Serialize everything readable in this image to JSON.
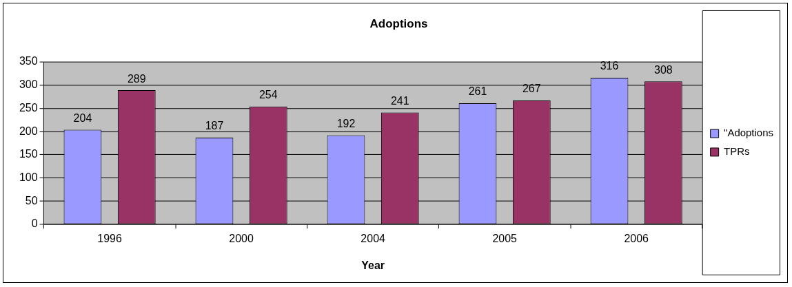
{
  "chart_data": {
    "type": "bar",
    "title": "Adoptions",
    "xlabel": "Year",
    "categories": [
      "1996",
      "2000",
      "2004",
      "2005",
      "2006"
    ],
    "series": [
      {
        "name": "\"Adoptions",
        "color": "#9999ff",
        "values": [
          204,
          187,
          192,
          261,
          316
        ]
      },
      {
        "name": "TPRs",
        "color": "#993366",
        "values": [
          289,
          254,
          241,
          267,
          308
        ]
      }
    ],
    "ylim": [
      0,
      350
    ],
    "yticks": [
      0,
      50,
      100,
      150,
      200,
      250,
      300,
      350
    ],
    "grid": "y",
    "legend": "right",
    "data_labels": true
  }
}
